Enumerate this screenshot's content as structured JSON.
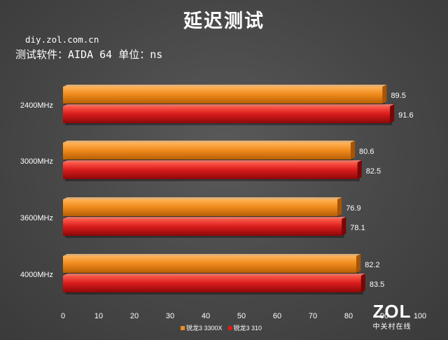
{
  "header": {
    "title": "延迟测试",
    "source": "diy.zol.com.cn",
    "subtitle": "测试软件：AIDA 64  单位：ns"
  },
  "chart_data": {
    "type": "bar",
    "orientation": "horizontal",
    "title": "延迟测试",
    "xlabel": "",
    "ylabel": "",
    "xlim": [
      0,
      100
    ],
    "x_ticks": [
      0,
      10,
      20,
      30,
      40,
      50,
      60,
      70,
      80,
      90,
      100
    ],
    "categories": [
      "2400MHz",
      "3000MHz",
      "3600MHz",
      "4000MHz"
    ],
    "series": [
      {
        "name": "锐龙3 3300X",
        "color": "#f08a1c",
        "values": [
          89.5,
          80.6,
          76.9,
          82.2
        ]
      },
      {
        "name": "锐龙3 310",
        "color": "#d81c1c",
        "values": [
          91.6,
          82.5,
          78.1,
          83.5
        ]
      }
    ],
    "grid": false,
    "legend": "bottom"
  },
  "watermark": {
    "brand": "ZOL",
    "sub": "中关村在线"
  }
}
